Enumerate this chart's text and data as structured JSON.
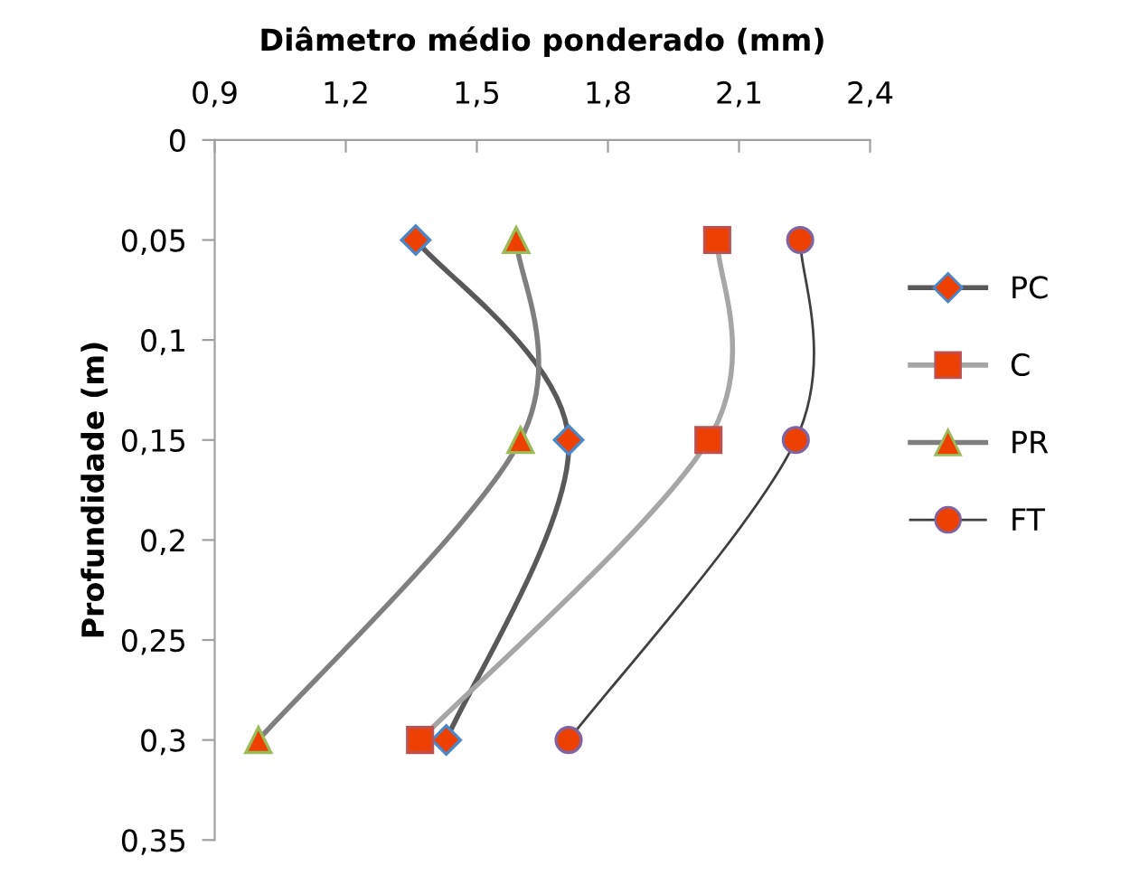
{
  "chart_data": {
    "type": "line",
    "xlabel": "Diâmetro médio ponderado (mm)",
    "ylabel": "Profundidade (m)",
    "xlim": [
      0.9,
      2.4
    ],
    "xticks": [
      {
        "value": 0.9,
        "label": "0,9"
      },
      {
        "value": 1.2,
        "label": "1,2"
      },
      {
        "value": 1.5,
        "label": "1,5"
      },
      {
        "value": 1.8,
        "label": "1,8"
      },
      {
        "value": 2.1,
        "label": "2,1"
      },
      {
        "value": 2.4,
        "label": "2,4"
      }
    ],
    "ylim": [
      0.35,
      0
    ],
    "yticks": [
      0,
      {
        "value": 0.05,
        "label": "0,05"
      },
      {
        "value": 0.1,
        "label": "0,1"
      },
      {
        "value": 0.15,
        "label": "0,15"
      },
      {
        "value": 0.2,
        "label": "0,2"
      },
      {
        "value": 0.25,
        "label": "0,25"
      },
      {
        "value": 0.3,
        "label": "0,3"
      },
      {
        "value": 0.35,
        "label": "0,35"
      }
    ],
    "grid": false,
    "legend": "right",
    "series": [
      {
        "name": "PC",
        "color": "#595959",
        "marker": "diamond",
        "x": [
          1.36,
          1.71,
          1.43
        ],
        "values": [
          0.05,
          0.15,
          0.3
        ]
      },
      {
        "name": "C",
        "color": "#a6a6a6",
        "marker": "square",
        "x": [
          2.05,
          2.03,
          1.37
        ],
        "values": [
          0.05,
          0.15,
          0.3
        ]
      },
      {
        "name": "PR",
        "color": "#7f7f7f",
        "marker": "triangle",
        "x": [
          1.59,
          1.6,
          1.0
        ],
        "values": [
          0.05,
          0.15,
          0.3
        ]
      },
      {
        "name": "FT",
        "color": "#404040",
        "marker": "circle",
        "x": [
          2.24,
          2.23,
          1.71
        ],
        "values": [
          0.05,
          0.15,
          0.3
        ]
      }
    ]
  }
}
